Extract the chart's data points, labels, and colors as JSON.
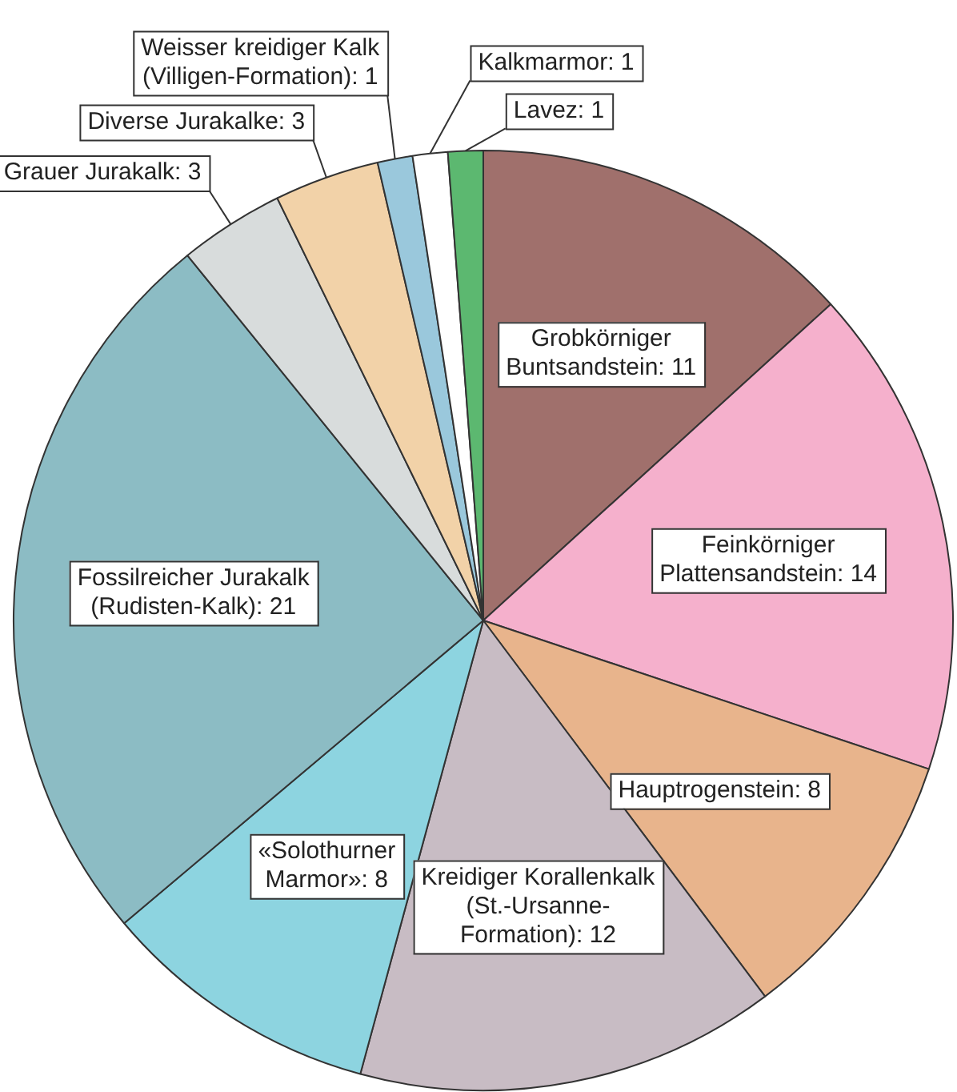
{
  "chart_data": {
    "type": "pie",
    "categories": [
      "Grobkörniger Buntsandstein: 11",
      "Feinkörniger Plattensandstein: 14",
      "Hauptrogenstein: 8",
      "Kreidiger Korallenkalk (St.-Ursanne-Formation): 12",
      "«Solothurner Marmor»: 8",
      "Fossilreicher Jurakalk (Rudisten-Kalk): 21",
      "Grauer Jurakalk: 3",
      "Diverse Jurakalke: 3",
      "Weisser kreidiger Kalk (Villigen-Formation): 1",
      "Kalkmarmor: 1",
      "Lavez: 1"
    ],
    "values": [
      11,
      14,
      8,
      12,
      8,
      21,
      3,
      3,
      1,
      1,
      1
    ],
    "colors": [
      "#a0706c",
      "#f5b0cc",
      "#e8b48c",
      "#c8bcc4",
      "#8dd4e0",
      "#8cbcc4",
      "#d8dcdc",
      "#f2d2a8",
      "#9ac8dc",
      "#ffffff",
      "#5cb870"
    ],
    "legend": false
  }
}
